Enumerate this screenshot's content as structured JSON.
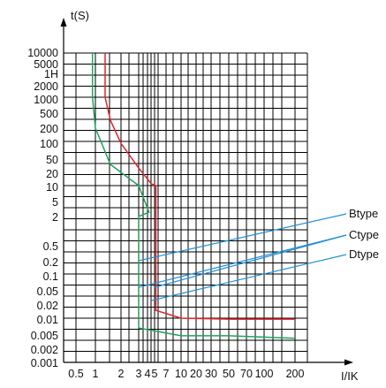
{
  "chart_data": {
    "type": "line",
    "x_axis": {
      "label": "I/IK",
      "tick_labels": [
        "0.5",
        "1",
        "2",
        "3",
        "4",
        "5",
        "7",
        "10",
        "20",
        "30",
        "50",
        "70",
        "100",
        "200"
      ]
    },
    "y_axis": {
      "label": "t(S)",
      "tick_labels": [
        "10000",
        "5000",
        "1H",
        "2000",
        "1000",
        "500",
        "200",
        "100",
        "50",
        "20",
        "10",
        "5",
        "2",
        "0.5",
        "0.2",
        "0.1",
        "0.05",
        "0.02",
        "0.01",
        "0.005",
        "0.002",
        "0.001"
      ]
    },
    "grid": true,
    "series": [
      {
        "name": "red-curve",
        "color": "#e0242c",
        "points": [
          [
            1.3,
            10000
          ],
          [
            1.3,
            1000
          ],
          [
            1.5,
            300
          ],
          [
            2.0,
            90
          ],
          [
            3.0,
            25
          ],
          [
            4.5,
            11
          ],
          [
            5.2,
            10
          ],
          [
            5.2,
            0.015
          ],
          [
            10,
            0.01
          ],
          [
            50,
            0.0095
          ],
          [
            200,
            0.0095
          ]
        ]
      },
      {
        "name": "green-curve",
        "color": "#1fa35c",
        "points": [
          [
            0.9,
            10000
          ],
          [
            0.9,
            1000
          ],
          [
            1.0,
            200
          ],
          [
            1.5,
            30
          ],
          [
            3.0,
            10
          ],
          [
            4.2,
            2.5
          ],
          [
            3.0,
            2.0
          ],
          [
            3.0,
            0.006
          ],
          [
            10,
            0.004
          ],
          [
            50,
            0.004
          ],
          [
            200,
            0.0035
          ]
        ]
      }
    ],
    "annotations": [
      {
        "label": "Btype",
        "color": "#1f8fd6",
        "targets": [
          [
            3.0,
            0.2
          ]
        ]
      },
      {
        "label": "Ctype",
        "color": "#1f8fd6",
        "targets": [
          [
            3.0,
            0.05
          ],
          [
            5.0,
            0.05
          ]
        ]
      },
      {
        "label": "Dtype",
        "color": "#1f8fd6",
        "targets": [
          [
            4.5,
            0.025
          ]
        ]
      }
    ]
  }
}
